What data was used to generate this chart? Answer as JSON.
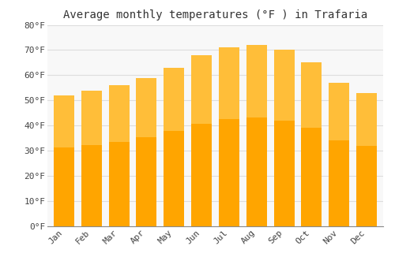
{
  "title": "Average monthly temperatures (°F ) in Trafaria",
  "months": [
    "Jan",
    "Feb",
    "Mar",
    "Apr",
    "May",
    "Jun",
    "Jul",
    "Aug",
    "Sep",
    "Oct",
    "Nov",
    "Dec"
  ],
  "values": [
    52,
    54,
    56,
    59,
    63,
    68,
    71,
    72,
    70,
    65,
    57,
    53
  ],
  "bar_color_main": "#FFA500",
  "bar_color_light": "#FFD060",
  "bar_color_dark": "#E88000",
  "ylim": [
    0,
    80
  ],
  "yticks": [
    0,
    10,
    20,
    30,
    40,
    50,
    60,
    70,
    80
  ],
  "ytick_labels": [
    "0°F",
    "10°F",
    "20°F",
    "30°F",
    "40°F",
    "50°F",
    "60°F",
    "70°F",
    "80°F"
  ],
  "background_color": "#ffffff",
  "plot_bg_color": "#f8f8f8",
  "grid_color": "#dddddd",
  "title_fontsize": 10,
  "tick_fontsize": 8,
  "font_family": "monospace"
}
